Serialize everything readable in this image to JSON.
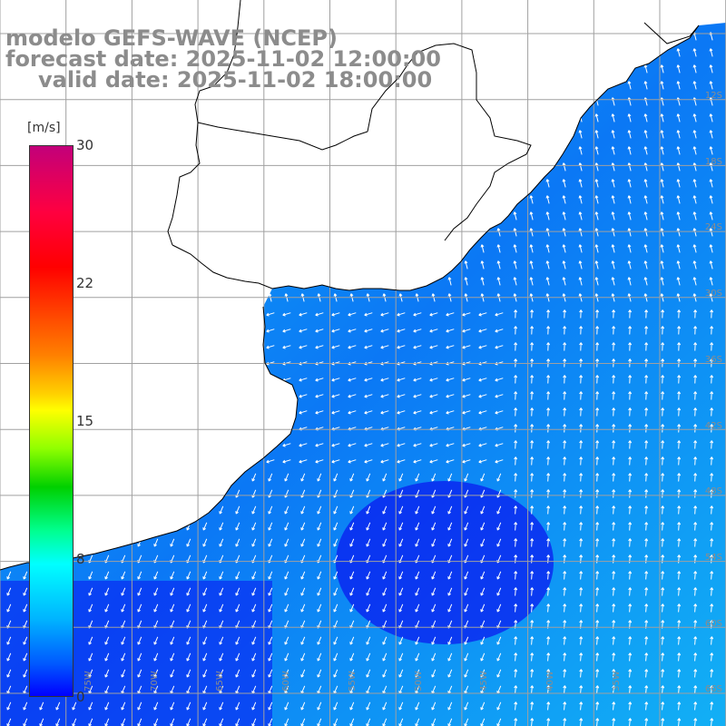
{
  "title": {
    "line1": "modelo GEFS-WAVE (NCEP)",
    "line2": "forecast date: 2025-11-02 12:00:00",
    "line3": "valid date: 2025-11-02 18:00:00"
  },
  "colorbar": {
    "unit": "[m/s]",
    "ticks": [
      "30",
      "22",
      "15",
      "8",
      "0"
    ]
  },
  "colors": {
    "deep_low": "#0a14f0",
    "ocean_mid": "#0b78f5",
    "ocean_high": "#12b0f5",
    "land": "#ffffff",
    "grid": "#a0a0a0",
    "coast": "#000000",
    "arrow": "#ffffff"
  },
  "grid_labels": {
    "right": [
      "12S",
      "18S",
      "24S",
      "30S",
      "36S",
      "42S",
      "48S",
      "54S",
      "60S",
      "66S"
    ],
    "bottom": [
      "75W",
      "70W",
      "65W",
      "60W",
      "55W",
      "50W",
      "45W",
      "40W",
      "35W"
    ]
  }
}
